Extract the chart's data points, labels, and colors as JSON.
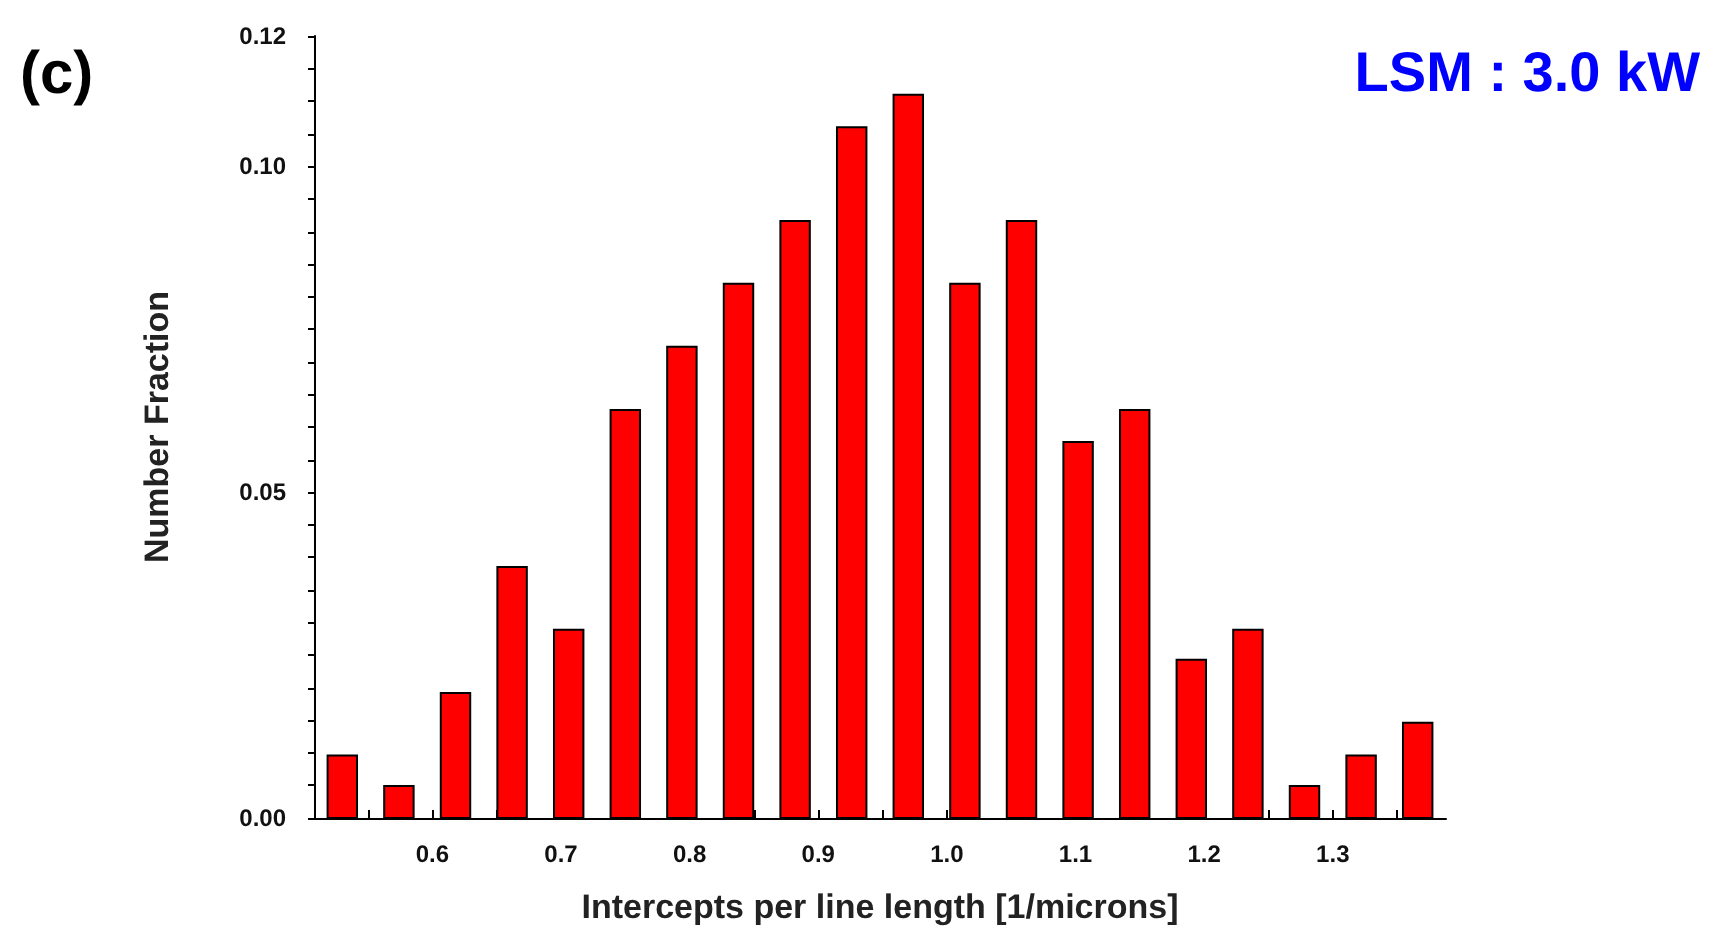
{
  "chart_data": {
    "type": "histogram",
    "xlabel": "Intercepts per line length [1/microns]",
    "ylabel": "Number Fraction",
    "annotations": [
      "(c)",
      "LSM : 3.0 kW"
    ],
    "bins": [
      0.508,
      0.552,
      0.596,
      0.64,
      0.684,
      0.728,
      0.772,
      0.816,
      0.86,
      0.904,
      0.948,
      0.992,
      1.036,
      1.08,
      1.124,
      1.168,
      1.212,
      1.256,
      1.3,
      1.344,
      1.388
    ],
    "values": [
      0.0096,
      0.0049,
      0.0192,
      0.0385,
      0.0289,
      0.0626,
      0.0723,
      0.082,
      0.0916,
      0.106,
      0.111,
      0.082,
      0.0916,
      0.0577,
      0.0626,
      0.0243,
      0.0289,
      0.0049,
      0.0096,
      0.0146
    ],
    "color": "#ff0000",
    "xlim": [
      0.508,
      1.388
    ],
    "xticks": [
      {
        "value": 0.55,
        "label": null
      },
      0.6,
      {
        "value": 0.65,
        "label": null
      },
      0.7,
      {
        "value": 0.75,
        "label": null
      },
      0.8,
      {
        "value": 0.85,
        "label": null
      },
      0.9,
      {
        "value": 0.95,
        "label": null
      },
      {
        "value": 1.0,
        "label": "1.0"
      },
      {
        "value": 1.05,
        "label": null
      },
      1.1,
      {
        "value": 1.15,
        "label": null
      },
      1.2,
      {
        "value": 1.25,
        "label": null
      },
      1.3,
      {
        "value": 1.35,
        "label": null
      }
    ],
    "ylim": [
      0,
      0.12
    ],
    "yticks": [
      {
        "value": 0,
        "label": "0.00"
      },
      {
        "value": 0.005,
        "label": null
      },
      {
        "value": 0.01,
        "label": null
      },
      {
        "value": 0.015,
        "label": null
      },
      {
        "value": 0.02,
        "label": null
      },
      {
        "value": 0.025,
        "label": null
      },
      {
        "value": 0.03,
        "label": null
      },
      {
        "value": 0.035,
        "label": null
      },
      {
        "value": 0.04,
        "label": null
      },
      {
        "value": 0.045,
        "label": null
      },
      0.05,
      {
        "value": 0.055,
        "label": null
      },
      {
        "value": 0.06,
        "label": null
      },
      {
        "value": 0.065,
        "label": null
      },
      {
        "value": 0.07,
        "label": null
      },
      {
        "value": 0.075,
        "label": null
      },
      {
        "value": 0.08,
        "label": null
      },
      {
        "value": 0.085,
        "label": null
      },
      {
        "value": 0.09,
        "label": null
      },
      {
        "value": 0.095,
        "label": null
      },
      {
        "value": 0.1,
        "label": "0.10"
      },
      {
        "value": 0.105,
        "label": null
      },
      {
        "value": 0.11,
        "label": null
      },
      {
        "value": 0.115,
        "label": null
      },
      0.12
    ],
    "grid": false
  }
}
